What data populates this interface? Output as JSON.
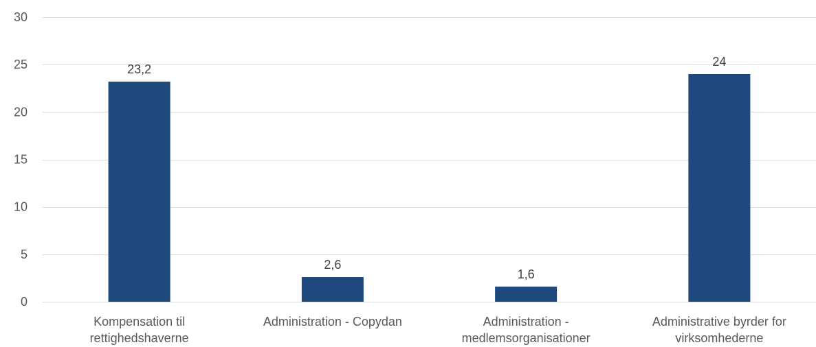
{
  "chart_data": {
    "type": "bar",
    "title": "",
    "xlabel": "",
    "ylabel": "",
    "categories": [
      [
        "Kompensation til",
        "rettighedshaverne"
      ],
      [
        "Administration - Copydan"
      ],
      [
        "Administration -",
        "medlemsorganisationer"
      ],
      [
        "Administrative byrder for",
        "virksomhederne"
      ]
    ],
    "values": [
      23.2,
      2.6,
      1.6,
      24
    ],
    "data_labels": [
      "23,2",
      "2,6",
      "1,6",
      "24"
    ],
    "ylim": [
      0,
      30
    ],
    "yticks": [
      0,
      5,
      10,
      15,
      20,
      25,
      30
    ],
    "ytick_labels": [
      "0",
      "5",
      "10",
      "15",
      "20",
      "25",
      "30"
    ],
    "grid": true,
    "legend": "none",
    "bar_color": "#1f497d"
  }
}
